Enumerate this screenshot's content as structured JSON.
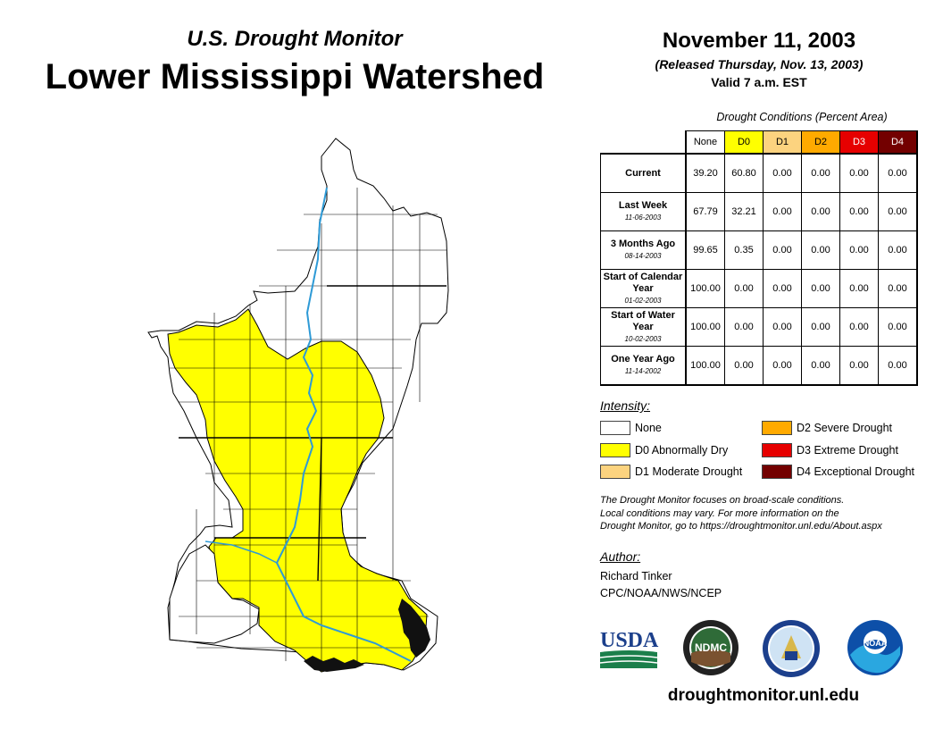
{
  "header": {
    "subtitle": "U.S. Drought Monitor",
    "title": "Lower Mississippi Watershed"
  },
  "date": {
    "date": "November 11, 2003",
    "released": "(Released Thursday, Nov. 13, 2003)",
    "valid": "Valid 7 a.m. EST"
  },
  "conditions": {
    "caption": "Drought Conditions (Percent Area)",
    "columns": [
      "None",
      "D0",
      "D1",
      "D2",
      "D3",
      "D4"
    ],
    "column_colors": [
      "#ffffff",
      "#ffff00",
      "#fcd37f",
      "#ffaa00",
      "#e60000",
      "#730000"
    ],
    "rows": [
      {
        "label": "Current",
        "date": "",
        "values": [
          "39.20",
          "60.80",
          "0.00",
          "0.00",
          "0.00",
          "0.00"
        ]
      },
      {
        "label": "Last Week",
        "date": "11-06-2003",
        "values": [
          "67.79",
          "32.21",
          "0.00",
          "0.00",
          "0.00",
          "0.00"
        ]
      },
      {
        "label": "3 Months Ago",
        "date": "08-14-2003",
        "values": [
          "99.65",
          "0.35",
          "0.00",
          "0.00",
          "0.00",
          "0.00"
        ]
      },
      {
        "label": "Start of Calendar Year",
        "date": "01-02-2003",
        "values": [
          "100.00",
          "0.00",
          "0.00",
          "0.00",
          "0.00",
          "0.00"
        ]
      },
      {
        "label": "Start of Water Year",
        "date": "10-02-2003",
        "values": [
          "100.00",
          "0.00",
          "0.00",
          "0.00",
          "0.00",
          "0.00"
        ]
      },
      {
        "label": "One Year Ago",
        "date": "11-14-2002",
        "values": [
          "100.00",
          "0.00",
          "0.00",
          "0.00",
          "0.00",
          "0.00"
        ]
      }
    ]
  },
  "intensity": {
    "heading": "Intensity:",
    "items": [
      {
        "label": "None",
        "color": "#ffffff"
      },
      {
        "label": "D0 Abnormally Dry",
        "color": "#ffff00"
      },
      {
        "label": "D1 Moderate Drought",
        "color": "#fcd37f"
      },
      {
        "label": "D2 Severe Drought",
        "color": "#ffaa00"
      },
      {
        "label": "D3 Extreme Drought",
        "color": "#e60000"
      },
      {
        "label": "D4 Exceptional Drought",
        "color": "#730000"
      }
    ]
  },
  "note": {
    "line1": "The Drought Monitor focuses on broad-scale conditions.",
    "line2": "Local conditions may vary. For more information on the",
    "line3": "Drought Monitor, go to https://droughtmonitor.unl.edu/About.aspx"
  },
  "author": {
    "heading": "Author:",
    "name": "Richard Tinker",
    "org": "CPC/NOAA/NWS/NCEP"
  },
  "logos": {
    "usda": "USDA",
    "ndmc": "NDMC",
    "noaa": "NOAA"
  },
  "website": "droughtmonitor.unl.edu",
  "map_colors": {
    "none": "#ffffff",
    "d0": "#ffff00",
    "river": "#2e9ad6"
  }
}
